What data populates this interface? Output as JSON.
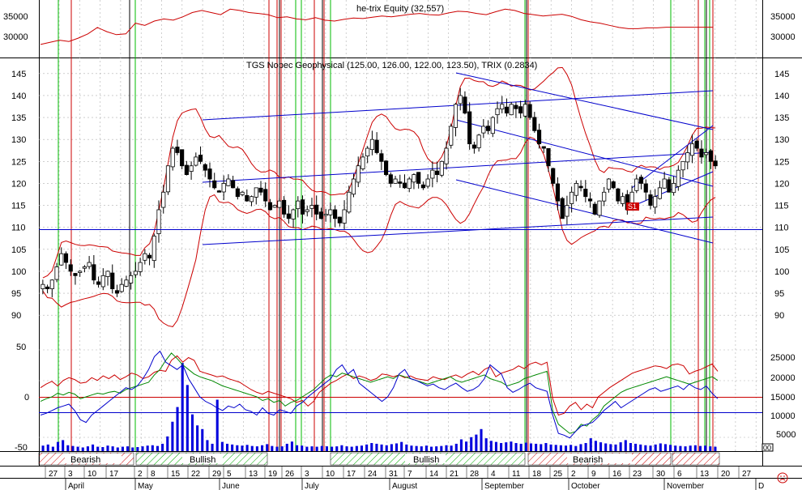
{
  "equity_panel": {
    "title": "he-trix Equity (32,557)",
    "y_ticks_left": [
      "35000",
      "30000"
    ],
    "y_ticks_right": [
      "35000",
      "30000"
    ]
  },
  "price_panel": {
    "title": "TGS Nopec Geophysical (125.00, 126.00, 122.00, 123.50), TRIX (0.2834)",
    "y_ticks": [
      "145",
      "140",
      "135",
      "130",
      "125",
      "120",
      "115",
      "110",
      "105",
      "100",
      "95",
      "90"
    ],
    "marker_label": "S1"
  },
  "indicator_panel": {
    "y_ticks_left": [
      "50",
      "0",
      "-50"
    ],
    "y_ticks_right": [
      "25000",
      "20000",
      "15000",
      "10000",
      "5000"
    ],
    "volume_zero_label": "00"
  },
  "signal_bands": [
    {
      "label": "Bearish"
    },
    {
      "label": "Bullish"
    },
    {
      "label": "Bullish"
    },
    {
      "label": "Bearish"
    }
  ],
  "date_axis": {
    "day_labels": [
      "27",
      "3",
      "10",
      "17",
      "2",
      "8",
      "15",
      "22",
      "29",
      "5",
      "13",
      "19",
      "26",
      "3",
      "10",
      "17",
      "24",
      "31",
      "7",
      "14",
      "21",
      "28",
      "4",
      "11",
      "18",
      "25",
      "2",
      "9",
      "16",
      "23",
      "30",
      "6",
      "13",
      "20",
      "27"
    ],
    "month_labels": [
      "April",
      "May",
      "June",
      "July",
      "August",
      "September",
      "October",
      "November",
      "D"
    ]
  },
  "colors": {
    "background": "#ffffff",
    "grid": "#b0b0b0",
    "equity_line": "#cc0000",
    "bollinger": "#cc0000",
    "trendline": "#0000cc",
    "buy_signal": "#00bb00",
    "sell_signal": "#cc0000",
    "volume": "#0000dd",
    "osc_red": "#cc0000",
    "osc_green": "#008800",
    "osc_blue": "#0000cc"
  },
  "chart_data": {
    "type": "candlestick",
    "title": "TGS Nopec Geophysical (125.00, 126.00, 122.00, 123.50), TRIX (0.2834)",
    "last_bar": {
      "open": 125.0,
      "high": 126.0,
      "low": 122.0,
      "close": 123.5
    },
    "trix": 0.2834,
    "equity_last": 32557,
    "price_ylim": [
      88,
      147
    ],
    "equity_ylim": [
      26000,
      38000
    ],
    "osc_ylim": [
      -55,
      55
    ],
    "volume_ylim": [
      0,
      28000
    ],
    "price_closes": [
      97,
      96,
      98,
      101,
      104,
      102,
      100,
      99,
      100,
      101,
      102,
      98,
      97,
      99,
      100,
      96,
      95,
      97,
      98,
      99,
      100,
      102,
      104,
      103,
      108,
      114,
      118,
      124,
      128,
      127,
      124,
      122,
      124,
      126,
      125,
      123,
      121,
      119,
      118,
      120,
      121,
      119,
      117,
      118,
      116,
      117,
      119,
      118,
      116,
      114,
      115,
      116,
      113,
      112,
      114,
      116,
      113,
      114,
      115,
      113,
      112,
      113,
      114,
      112,
      111,
      114,
      118,
      121,
      124,
      126,
      128,
      130,
      127,
      125,
      122,
      120,
      121,
      120,
      119,
      121,
      122,
      120,
      119,
      121,
      123,
      122,
      125,
      128,
      133,
      138,
      140,
      136,
      129,
      128,
      131,
      133,
      132,
      135,
      137,
      138,
      136,
      138,
      137,
      136,
      138,
      135,
      132,
      129,
      128,
      124,
      120,
      116,
      112,
      115,
      118,
      120,
      119,
      117,
      116,
      113,
      116,
      118,
      121,
      119,
      116,
      117,
      114,
      118,
      121,
      120,
      118,
      115,
      117,
      119,
      121,
      118,
      120,
      123,
      125,
      127,
      129,
      128,
      126,
      127,
      125,
      124
    ],
    "equity_values": [
      28500,
      29000,
      29500,
      29200,
      30000,
      31000,
      32500,
      31500,
      30800,
      31000,
      33500,
      33000,
      34000,
      34500,
      34200,
      35000,
      36000,
      36500,
      36000,
      35500,
      36800,
      36500,
      36000,
      35800,
      35500,
      34800,
      35000,
      34500,
      34300,
      34800,
      34200,
      34000,
      34400,
      34700,
      34600,
      34900,
      35200,
      35000,
      35300,
      35600,
      35800,
      35500,
      35400,
      35900,
      36300,
      36200,
      35800,
      35500,
      36200,
      36800,
      36500,
      35800,
      35500,
      35200,
      35400,
      35600,
      35100,
      34300,
      33800,
      33500,
      33000,
      32500,
      32200,
      32200,
      32400,
      32400,
      32550,
      32550,
      32557
    ],
    "volume_values": [
      1500,
      1800,
      1200,
      2500,
      3000,
      1600,
      1400,
      1200,
      1000,
      1300,
      1800,
      1200,
      1100,
      1500,
      1300,
      1000,
      1200,
      1300,
      1000,
      1100,
      1300,
      1500,
      1600,
      1400,
      2000,
      4000,
      8000,
      12000,
      24000,
      18000,
      10000,
      7000,
      6000,
      3000,
      2000,
      14000,
      2500,
      2000,
      1800,
      1600,
      1500,
      1700,
      1400,
      1300,
      1600,
      1900,
      1400,
      1200,
      1300,
      2000,
      2600,
      1600,
      1500,
      1200,
      1300,
      1200,
      1400,
      1300,
      1200,
      1300,
      1600,
      1300,
      1200,
      1400,
      1500,
      1800,
      2200,
      2000,
      1800,
      1600,
      1900,
      2100,
      2500,
      1800,
      1500,
      1400,
      1300,
      1500,
      1200,
      1300,
      1400,
      1600,
      1500,
      2000,
      3200,
      2600,
      3800,
      4500,
      6000,
      3500,
      2800,
      2500,
      2200,
      2400,
      2600,
      2200,
      2000,
      2300,
      2100,
      2000,
      1900,
      2200,
      1800,
      1700,
      1600,
      1500,
      1700,
      1400,
      1900,
      2200,
      3500,
      2800,
      2400,
      2100,
      1900,
      1800,
      2400,
      3000,
      2200,
      2000,
      1800,
      1600,
      1500,
      1800,
      2100,
      1900,
      1700,
      1500,
      1400,
      1300,
      1500,
      1600,
      1400,
      1500,
      1300,
      1200
    ],
    "osc_red": [
      10,
      14,
      17,
      12,
      18,
      21,
      19,
      15,
      16,
      21,
      18,
      23,
      20,
      24,
      19,
      22,
      26,
      24,
      20,
      22,
      27,
      29,
      28,
      40,
      45,
      38,
      43,
      40,
      28,
      26,
      24,
      22,
      23,
      20,
      18,
      16,
      12,
      8,
      5,
      3,
      6,
      4,
      2,
      0,
      -2,
      -6,
      -4,
      -10,
      -5,
      5,
      10,
      15,
      18,
      22,
      25,
      20,
      23,
      21,
      18,
      20,
      25,
      24,
      22,
      24,
      21,
      23,
      20,
      19,
      18,
      22,
      20,
      19,
      22,
      24,
      21,
      25,
      28,
      24,
      30,
      33,
      22,
      26,
      28,
      30,
      34,
      31,
      36,
      38,
      35,
      38,
      -2,
      -20,
      -18,
      -10,
      -6,
      -14,
      -8,
      -12,
      0,
      5,
      10,
      14,
      18,
      22,
      26,
      28,
      30,
      32,
      34,
      33,
      31,
      35,
      36,
      34,
      25,
      28,
      30,
      33,
      36,
      28
    ],
    "osc_green": [
      -5,
      -2,
      0,
      4,
      2,
      5,
      3,
      -2,
      0,
      2,
      4,
      3,
      5,
      6,
      4,
      8,
      10,
      12,
      14,
      16,
      24,
      30,
      40,
      48,
      42,
      35,
      30,
      25,
      22,
      20,
      18,
      15,
      12,
      10,
      8,
      6,
      4,
      2,
      0,
      -4,
      -2,
      -6,
      -4,
      -10,
      -6,
      -4,
      0,
      4,
      8,
      14,
      20,
      24,
      22,
      26,
      24,
      22,
      20,
      18,
      16,
      18,
      20,
      22,
      20,
      24,
      22,
      20,
      18,
      16,
      14,
      16,
      18,
      20,
      22,
      18,
      16,
      18,
      20,
      22,
      24,
      20,
      18,
      16,
      12,
      14,
      16,
      20,
      22,
      24,
      26,
      28,
      -15,
      -30,
      -35,
      -40,
      -38,
      -30,
      -32,
      -25,
      -20,
      -10,
      -5,
      0,
      5,
      8,
      10,
      12,
      14,
      16,
      18,
      20,
      22,
      20,
      18,
      16,
      14,
      16,
      18,
      20,
      22,
      18
    ],
    "osc_blue": [
      -20,
      -18,
      -15,
      -12,
      -10,
      -8,
      -15,
      -25,
      -28,
      -20,
      -15,
      -10,
      -5,
      0,
      5,
      10,
      8,
      12,
      20,
      30,
      44,
      50,
      38,
      34,
      30,
      35,
      20,
      10,
      0,
      -5,
      -8,
      -12,
      -15,
      -10,
      -12,
      -8,
      -14,
      -16,
      -20,
      -12,
      -18,
      -20,
      -14,
      -16,
      -18,
      -10,
      -6,
      0,
      5,
      10,
      15,
      20,
      30,
      35,
      25,
      30,
      15,
      10,
      5,
      0,
      -5,
      0,
      10,
      25,
      30,
      20,
      18,
      15,
      12,
      14,
      10,
      8,
      12,
      15,
      10,
      6,
      8,
      12,
      20,
      35,
      30,
      25,
      10,
      5,
      8,
      12,
      15,
      10,
      8,
      6,
      -20,
      -40,
      -42,
      -45,
      -38,
      -32,
      -30,
      -28,
      -22,
      -15,
      -10,
      -5,
      -12,
      -8,
      -4,
      0,
      4,
      8,
      10,
      6,
      8,
      10,
      12,
      8,
      14,
      10,
      8,
      12,
      4,
      -2
    ]
  }
}
